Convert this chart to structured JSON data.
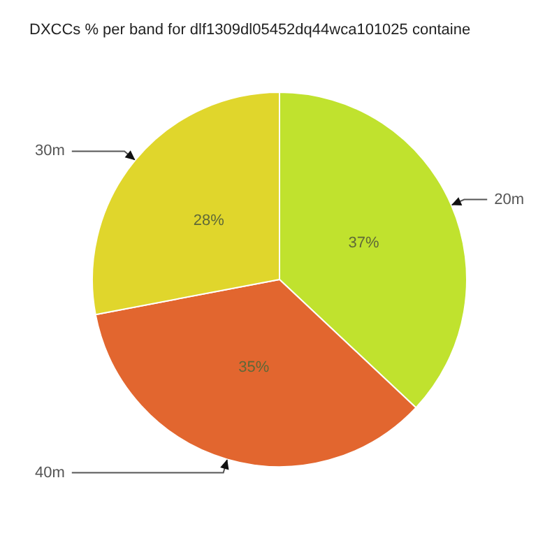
{
  "chart_data": {
    "type": "pie",
    "title": "DXCCs % per band for dlf1309dl05452dq44wca101025 containe",
    "categories": [
      "20m",
      "40m",
      "30m"
    ],
    "values": [
      37,
      35,
      28
    ],
    "colors": [
      "#c0e22e",
      "#e2662f",
      "#e0d62c"
    ],
    "value_labels": [
      "37%",
      "35%",
      "28%"
    ]
  }
}
